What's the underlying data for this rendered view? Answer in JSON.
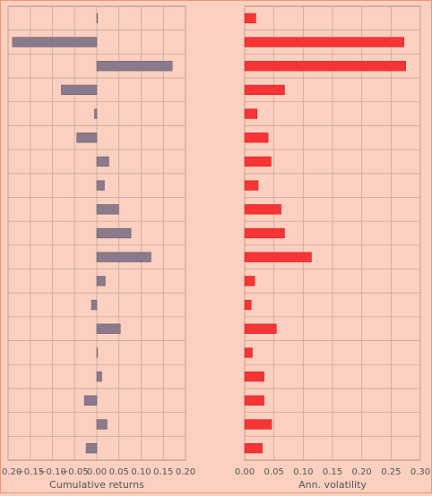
{
  "chart_data": [
    {
      "type": "bar",
      "orientation": "horizontal",
      "xlabel": "Cumulative returns",
      "xlim": [
        -0.2,
        0.2
      ],
      "xticks": [
        "−0.20",
        "−0.15",
        "−0.10",
        "−0.05",
        "0.00",
        "0.05",
        "0.10",
        "0.15",
        "0.20"
      ],
      "xtick_values": [
        -0.2,
        -0.15,
        -0.1,
        -0.05,
        0,
        0.05,
        0.1,
        0.15,
        0.2
      ],
      "values": [
        0.0,
        -0.19,
        0.17,
        -0.08,
        -0.005,
        -0.045,
        0.027,
        0.017,
        0.049,
        0.077,
        0.122,
        0.019,
        -0.012,
        0.053,
        0.0,
        0.011,
        -0.028,
        0.023,
        -0.024
      ],
      "color": "#8b7a8c",
      "grid": true,
      "legend": "none"
    },
    {
      "type": "bar",
      "orientation": "horizontal",
      "xlabel": "Ann. volatility",
      "xlim": [
        0,
        0.3
      ],
      "xticks": [
        "0.00",
        "0.05",
        "0.10",
        "0.15",
        "0.20",
        "0.25",
        "0.30"
      ],
      "xtick_values": [
        0,
        0.05,
        0.1,
        0.15,
        0.2,
        0.25,
        0.3
      ],
      "values": [
        0.019,
        0.272,
        0.275,
        0.068,
        0.021,
        0.04,
        0.045,
        0.023,
        0.062,
        0.068,
        0.114,
        0.017,
        0.011,
        0.054,
        0.013,
        0.033,
        0.033,
        0.046,
        0.03
      ],
      "color": "#f53535",
      "grid": true,
      "legend": "none"
    }
  ]
}
